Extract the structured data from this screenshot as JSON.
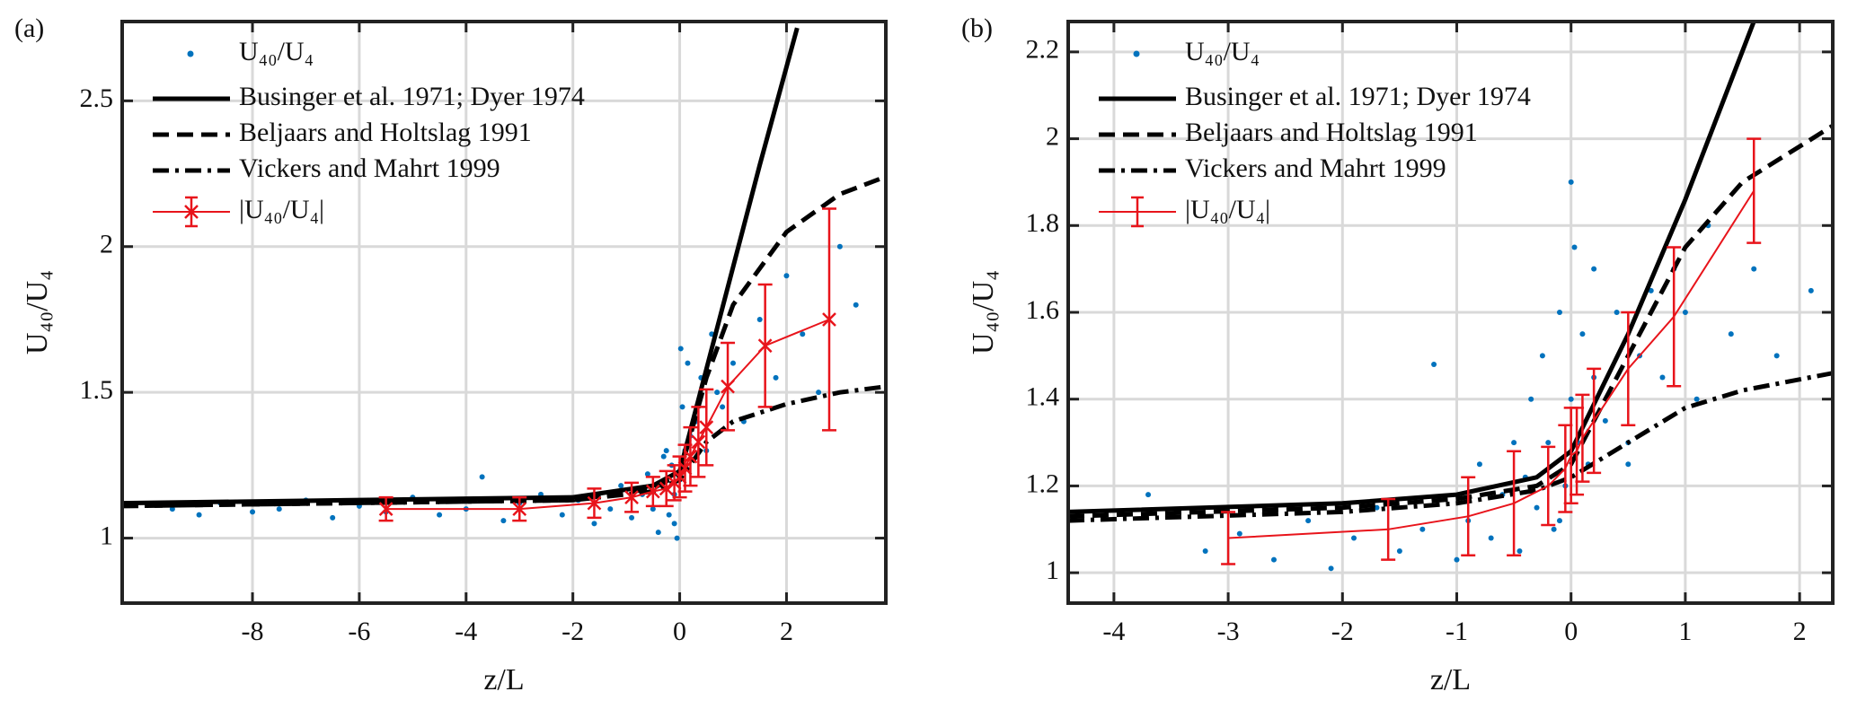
{
  "chart_data": [
    {
      "type": "scatter",
      "label": "(a)",
      "xlabel": "z/L",
      "ylabel": "U₄₀/U₄",
      "xlim": [
        -10.44,
        3.86
      ],
      "ylim": [
        0.777,
        2.772
      ],
      "xticks": [
        -8,
        -6,
        -4,
        -2,
        0,
        2
      ],
      "yticks": [
        1,
        1.5,
        2,
        2.5
      ],
      "grid": true,
      "legend": "upper left",
      "series": [
        {
          "name": "U₄₀/U₄",
          "style": "points",
          "color": "#0072bd",
          "x": [
            -9.5,
            -9,
            -8.6,
            -8,
            -7.5,
            -7,
            -6.5,
            -6,
            -5.5,
            -5,
            -4.5,
            -4,
            -3.7,
            -3.3,
            -3,
            -2.6,
            -2.2,
            -1.9,
            -1.6,
            -1.3,
            -1.1,
            -0.9,
            -0.7,
            -0.6,
            -0.5,
            -0.4,
            -0.3,
            -0.25,
            -0.2,
            -0.15,
            -0.1,
            -0.05,
            0,
            0.05,
            0.1,
            0.15,
            0.2,
            0.3,
            0.4,
            0.5,
            0.6,
            0.8,
            1,
            1.2,
            1.5,
            1.8,
            2,
            2.3,
            2.6,
            3,
            3.3,
            -0.1,
            0.02,
            -0.3,
            0.7
          ],
          "values": [
            1.1,
            1.08,
            1.12,
            1.09,
            1.1,
            1.13,
            1.07,
            1.11,
            1.09,
            1.14,
            1.08,
            1.1,
            1.21,
            1.06,
            1.12,
            1.15,
            1.08,
            1.13,
            1.05,
            1.1,
            1.18,
            1.07,
            1.15,
            1.22,
            1.1,
            1.02,
            1.19,
            1.3,
            1.08,
            1.25,
            1.15,
            1.0,
            1.2,
            1.45,
            1.3,
            1.6,
            1.35,
            1.4,
            1.55,
            1.3,
            1.7,
            1.45,
            1.6,
            1.4,
            1.75,
            1.55,
            1.9,
            1.7,
            1.5,
            2.0,
            1.8,
            1.05,
            1.65,
            1.28,
            1.5
          ]
        },
        {
          "name": "Businger et al. 1971; Dyer 1974",
          "style": "solid",
          "color": "#000000",
          "x": [
            -10.44,
            -2,
            -0.5,
            -0.2,
            0,
            0.5,
            1,
            1.5,
            2.2
          ],
          "values": [
            1.12,
            1.14,
            1.18,
            1.21,
            1.23,
            1.58,
            1.93,
            2.28,
            2.75
          ]
        },
        {
          "name": "Beljaars and Holtslag 1991",
          "style": "dashed",
          "color": "#000000",
          "x": [
            -10.44,
            -2,
            -0.5,
            0,
            0.5,
            1,
            2,
            3,
            3.86
          ],
          "values": [
            1.11,
            1.13,
            1.17,
            1.22,
            1.55,
            1.8,
            2.05,
            2.18,
            2.24
          ]
        },
        {
          "name": "Vickers and Mahrt 1999",
          "style": "dashdot",
          "color": "#000000",
          "x": [
            -10.44,
            -2,
            -0.5,
            0,
            0.5,
            1,
            2,
            3,
            3.86
          ],
          "values": [
            1.11,
            1.13,
            1.16,
            1.2,
            1.33,
            1.4,
            1.46,
            1.5,
            1.52
          ]
        },
        {
          "name": "|U₄₀/U₄|",
          "style": "errorbar",
          "marker": "x",
          "color": "#e8141b",
          "x": [
            -5.5,
            -3,
            -1.6,
            -0.9,
            -0.5,
            -0.25,
            -0.1,
            0,
            0.1,
            0.2,
            0.35,
            0.5,
            0.9,
            1.6,
            2.8
          ],
          "values": [
            1.1,
            1.1,
            1.12,
            1.14,
            1.16,
            1.17,
            1.19,
            1.21,
            1.24,
            1.28,
            1.33,
            1.38,
            1.52,
            1.66,
            1.75
          ],
          "errors": [
            0.04,
            0.04,
            0.05,
            0.05,
            0.05,
            0.06,
            0.06,
            0.07,
            0.08,
            0.1,
            0.12,
            0.13,
            0.15,
            0.21,
            0.38
          ]
        }
      ]
    },
    {
      "type": "scatter",
      "label": "(b)",
      "xlabel": "z/L",
      "ylabel": "U₄₀/U₄",
      "xlim": [
        -4.4,
        2.29
      ],
      "ylim": [
        0.93,
        2.27
      ],
      "xticks": [
        -4,
        -3,
        -2,
        -1,
        0,
        1,
        2
      ],
      "yticks": [
        1,
        1.2,
        1.4,
        1.6,
        1.8,
        2,
        2.2
      ],
      "grid": true,
      "legend": "upper left",
      "series": [
        {
          "name": "U₄₀/U₄",
          "style": "points",
          "color": "#0072bd",
          "x": [
            -3.7,
            -3.2,
            -2.9,
            -2.6,
            -2.3,
            -2.1,
            -1.9,
            -1.7,
            -1.5,
            -1.3,
            -1.2,
            -1.0,
            -0.9,
            -0.8,
            -0.7,
            -0.6,
            -0.5,
            -0.45,
            -0.4,
            -0.35,
            -0.3,
            -0.25,
            -0.2,
            -0.15,
            -0.1,
            -0.05,
            0,
            0.03,
            0.06,
            0.1,
            0.15,
            0.2,
            0.3,
            0.4,
            0.5,
            0.6,
            0.7,
            0.8,
            0.9,
            1.0,
            1.1,
            1.2,
            1.4,
            1.6,
            1.8,
            2.1,
            -0.1,
            0,
            0.2,
            0.5
          ],
          "values": [
            1.18,
            1.05,
            1.09,
            1.03,
            1.12,
            1.01,
            1.08,
            1.15,
            1.05,
            1.1,
            1.48,
            1.03,
            1.12,
            1.25,
            1.08,
            1.18,
            1.3,
            1.05,
            1.22,
            1.4,
            1.15,
            1.5,
            1.3,
            1.1,
            1.6,
            1.2,
            1.4,
            1.75,
            1.3,
            1.55,
            1.25,
            1.45,
            1.35,
            1.6,
            1.3,
            1.5,
            1.65,
            1.45,
            1.7,
            1.6,
            1.4,
            1.8,
            1.55,
            1.7,
            1.5,
            1.65,
            1.12,
            1.9,
            1.7,
            1.25
          ]
        },
        {
          "name": "Businger et al. 1971; Dyer 1974",
          "style": "solid",
          "color": "#000000",
          "x": [
            -4.4,
            -2,
            -1,
            -0.3,
            0,
            0.5,
            1,
            1.6
          ],
          "values": [
            1.14,
            1.16,
            1.18,
            1.22,
            1.28,
            1.55,
            1.86,
            2.27
          ]
        },
        {
          "name": "Beljaars and Holtslag 1991",
          "style": "dashed",
          "color": "#000000",
          "x": [
            -4.4,
            -2,
            -1,
            -0.3,
            0,
            0.5,
            1,
            1.5,
            2.29
          ],
          "values": [
            1.13,
            1.15,
            1.17,
            1.2,
            1.25,
            1.5,
            1.75,
            1.9,
            2.03
          ]
        },
        {
          "name": "Vickers and Mahrt 1999",
          "style": "dashdot",
          "color": "#000000",
          "x": [
            -4.4,
            -2,
            -1,
            -0.3,
            0,
            0.5,
            1,
            1.5,
            2.29
          ],
          "values": [
            1.12,
            1.14,
            1.16,
            1.19,
            1.22,
            1.3,
            1.38,
            1.42,
            1.46
          ]
        },
        {
          "name": "|U₄₀/U₄|",
          "style": "errorbar",
          "color": "#e8141b",
          "x": [
            -3,
            -1.6,
            -0.9,
            -0.5,
            -0.2,
            -0.05,
            0,
            0.05,
            0.1,
            0.2,
            0.5,
            0.9,
            1.6
          ],
          "values": [
            1.08,
            1.1,
            1.13,
            1.16,
            1.2,
            1.24,
            1.27,
            1.28,
            1.31,
            1.35,
            1.47,
            1.59,
            1.88
          ],
          "errors": [
            0.06,
            0.07,
            0.09,
            0.12,
            0.09,
            0.1,
            0.11,
            0.1,
            0.1,
            0.12,
            0.13,
            0.16,
            0.12
          ]
        }
      ]
    }
  ]
}
